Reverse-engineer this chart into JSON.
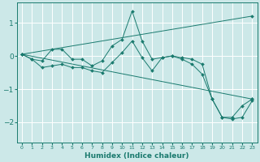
{
  "xlabel": "Humidex (Indice chaleur)",
  "bg_color": "#cce8e8",
  "grid_color": "#ffffff",
  "line_color": "#1a7a6e",
  "xlim": [
    -0.5,
    23.5
  ],
  "ylim": [
    -2.6,
    1.6
  ],
  "yticks": [
    -2,
    -1,
    0,
    1
  ],
  "xticks": [
    0,
    1,
    2,
    3,
    4,
    5,
    6,
    7,
    8,
    9,
    10,
    11,
    12,
    13,
    14,
    15,
    16,
    17,
    18,
    19,
    20,
    21,
    22,
    23
  ],
  "series1_x": [
    0,
    1,
    2,
    3,
    4,
    5,
    6,
    7,
    8,
    9,
    10,
    11,
    12,
    13,
    14,
    15,
    16,
    17,
    18,
    19,
    20,
    21,
    22,
    23
  ],
  "series1_y": [
    0.05,
    -0.1,
    -0.15,
    0.2,
    0.2,
    -0.1,
    -0.1,
    -0.3,
    -0.15,
    0.3,
    0.5,
    1.35,
    0.45,
    -0.1,
    -0.05,
    0.0,
    -0.05,
    -0.1,
    -0.25,
    -1.3,
    -1.85,
    -1.9,
    -1.85,
    -1.35
  ],
  "series2_x": [
    0,
    1,
    2,
    3,
    4,
    5,
    6,
    7,
    8,
    9,
    10,
    11,
    12,
    13,
    14,
    15,
    16,
    17,
    18,
    19,
    20,
    21,
    22,
    23
  ],
  "series2_y": [
    0.05,
    -0.1,
    -0.35,
    -0.3,
    -0.25,
    -0.35,
    -0.35,
    -0.45,
    -0.5,
    -0.2,
    0.1,
    0.45,
    -0.05,
    -0.45,
    -0.05,
    0.0,
    -0.1,
    -0.25,
    -0.55,
    -1.3,
    -1.85,
    -1.85,
    -1.5,
    -1.3
  ],
  "series3_x": [
    0,
    23
  ],
  "series3_y": [
    0.05,
    -1.3
  ],
  "series4_x": [
    0,
    23
  ],
  "series4_y": [
    0.05,
    1.2
  ],
  "marker": "D",
  "marker_size": 2.0,
  "linewidth": 0.7
}
